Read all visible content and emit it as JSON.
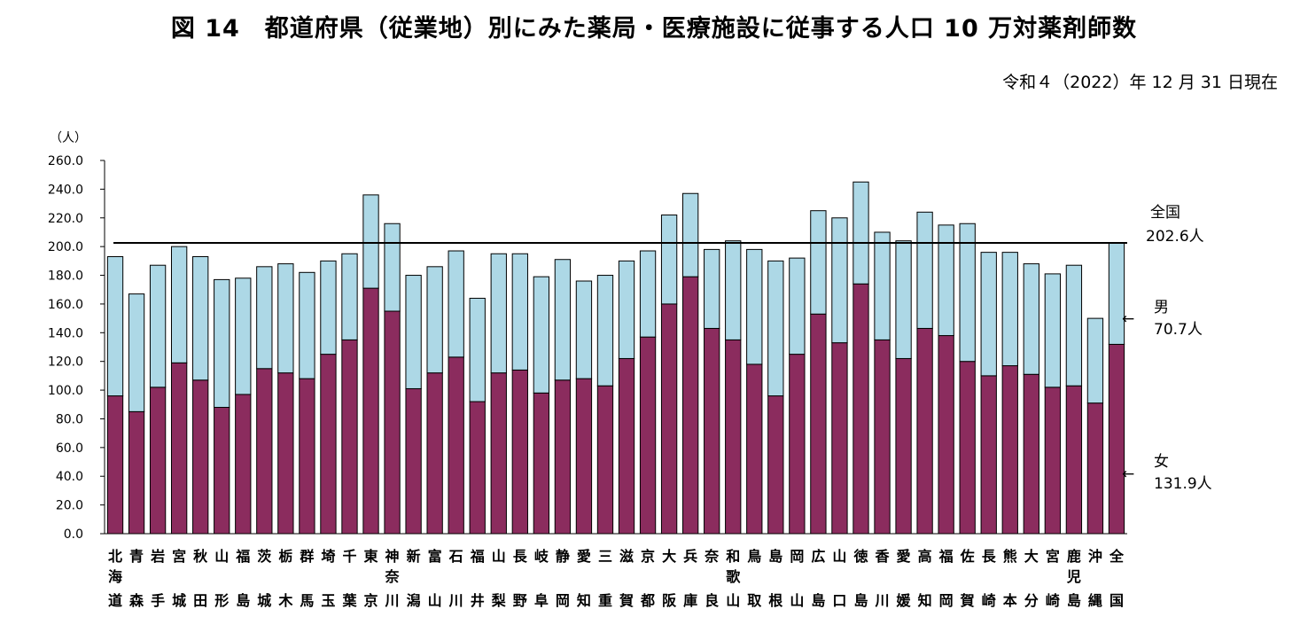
{
  "chart_data": {
    "type": "bar",
    "stacked": true,
    "title": "図 14　都道府県（従業地）別にみた薬局・医療施設に従事する人口 10 万対薬剤師数",
    "subtitle": "令和４（2022）年 12 月 31 日現在",
    "ylabel": "（人）",
    "ylim": [
      0,
      260
    ],
    "yticks": [
      "0.0",
      "20.0",
      "40.0",
      "60.0",
      "80.0",
      "100.0",
      "120.0",
      "140.0",
      "160.0",
      "180.0",
      "200.0",
      "220.0",
      "240.0",
      "260.0"
    ],
    "categories": [
      [
        "北",
        "海",
        "道"
      ],
      [
        "青",
        "",
        "森"
      ],
      [
        "岩",
        "",
        "手"
      ],
      [
        "宮",
        "",
        "城"
      ],
      [
        "秋",
        "",
        "田"
      ],
      [
        "山",
        "",
        "形"
      ],
      [
        "福",
        "",
        "島"
      ],
      [
        "茨",
        "",
        "城"
      ],
      [
        "栃",
        "",
        "木"
      ],
      [
        "群",
        "",
        "馬"
      ],
      [
        "埼",
        "",
        "玉"
      ],
      [
        "千",
        "",
        "葉"
      ],
      [
        "東",
        "",
        "京"
      ],
      [
        "神",
        "奈",
        "川"
      ],
      [
        "新",
        "",
        "潟"
      ],
      [
        "富",
        "",
        "山"
      ],
      [
        "石",
        "",
        "川"
      ],
      [
        "福",
        "",
        "井"
      ],
      [
        "山",
        "",
        "梨"
      ],
      [
        "長",
        "",
        "野"
      ],
      [
        "岐",
        "",
        "阜"
      ],
      [
        "静",
        "",
        "岡"
      ],
      [
        "愛",
        "",
        "知"
      ],
      [
        "三",
        "",
        "重"
      ],
      [
        "滋",
        "",
        "賀"
      ],
      [
        "京",
        "",
        "都"
      ],
      [
        "大",
        "",
        "阪"
      ],
      [
        "兵",
        "",
        "庫"
      ],
      [
        "奈",
        "",
        "良"
      ],
      [
        "和",
        "歌",
        "山"
      ],
      [
        "鳥",
        "",
        "取"
      ],
      [
        "島",
        "",
        "根"
      ],
      [
        "岡",
        "",
        "山"
      ],
      [
        "広",
        "",
        "島"
      ],
      [
        "山",
        "",
        "口"
      ],
      [
        "徳",
        "",
        "島"
      ],
      [
        "香",
        "",
        "川"
      ],
      [
        "愛",
        "",
        "媛"
      ],
      [
        "高",
        "",
        "知"
      ],
      [
        "福",
        "",
        "岡"
      ],
      [
        "佐",
        "",
        "賀"
      ],
      [
        "長",
        "",
        "崎"
      ],
      [
        "熊",
        "",
        "本"
      ],
      [
        "大",
        "",
        "分"
      ],
      [
        "宮",
        "",
        "崎"
      ],
      [
        "鹿",
        "児",
        "島"
      ],
      [
        "沖",
        "",
        "縄"
      ],
      [
        "全",
        "",
        "国"
      ]
    ],
    "series": [
      {
        "name": "女",
        "color": "#8b2c5e",
        "values": [
          96,
          85,
          102,
          119,
          107,
          88,
          97,
          115,
          112,
          108,
          125,
          135,
          171,
          155,
          101,
          112,
          123,
          92,
          112,
          114,
          98,
          107,
          108,
          103,
          122,
          137,
          160,
          179,
          143,
          135,
          118,
          96,
          125,
          153,
          133,
          174,
          135,
          122,
          143,
          138,
          120,
          110,
          117,
          111,
          102,
          103,
          91,
          131.9
        ]
      },
      {
        "name": "男",
        "color": "#add8e6",
        "values": [
          97,
          82,
          85,
          81,
          86,
          89,
          81,
          71,
          76,
          74,
          65,
          60,
          65,
          61,
          79,
          74,
          74,
          72,
          83,
          81,
          81,
          84,
          68,
          77,
          68,
          60,
          62,
          58,
          55,
          69,
          80,
          94,
          67,
          72,
          87,
          71,
          75,
          82,
          81,
          77,
          96,
          86,
          79,
          77,
          79,
          84,
          59,
          70.7
        ]
      }
    ],
    "reference_line": {
      "value": 202.6,
      "label": "全国",
      "value_label": "202.6人"
    },
    "side_labels": [
      {
        "label": "男",
        "value_label": "70.7人"
      },
      {
        "label": "女",
        "value_label": "131.9人"
      }
    ],
    "arrow_glyph": "←",
    "grid": false,
    "legend": "right"
  }
}
